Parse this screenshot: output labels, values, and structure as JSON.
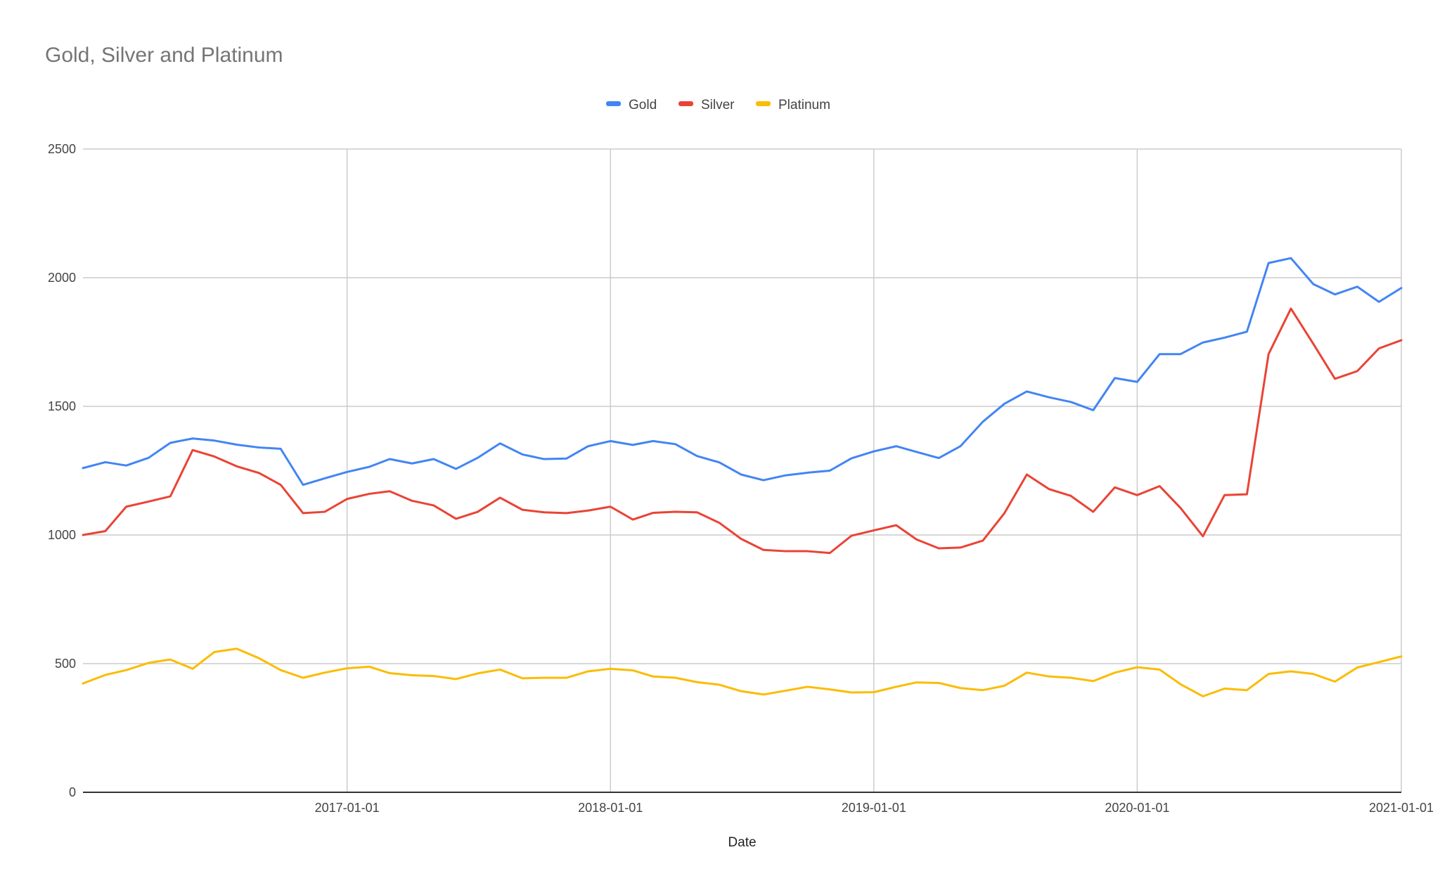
{
  "chart_data": {
    "type": "line",
    "title": "Gold, Silver and Platinum",
    "xlabel": "Date",
    "ylabel": "",
    "ylim": [
      0,
      2500
    ],
    "yticks": [
      0,
      500,
      1000,
      1500,
      2000,
      2500
    ],
    "xticks": [
      "2017-01-01",
      "2018-01-01",
      "2019-01-01",
      "2020-01-01",
      "2021-01-01"
    ],
    "xrange": [
      "2016-01-01",
      "2021-01-01"
    ],
    "grid": true,
    "legend_position": "top-center",
    "x": [
      "2016-01-01",
      "2016-02-01",
      "2016-03-01",
      "2016-04-01",
      "2016-05-01",
      "2016-06-01",
      "2016-07-01",
      "2016-08-01",
      "2016-09-01",
      "2016-10-01",
      "2016-11-01",
      "2016-12-01",
      "2017-01-01",
      "2017-02-01",
      "2017-03-01",
      "2017-04-01",
      "2017-05-01",
      "2017-06-01",
      "2017-07-01",
      "2017-08-01",
      "2017-09-01",
      "2017-10-01",
      "2017-11-01",
      "2017-12-01",
      "2018-01-01",
      "2018-02-01",
      "2018-03-01",
      "2018-04-01",
      "2018-05-01",
      "2018-06-01",
      "2018-07-01",
      "2018-08-01",
      "2018-09-01",
      "2018-10-01",
      "2018-11-01",
      "2018-12-01",
      "2019-01-01",
      "2019-02-01",
      "2019-03-01",
      "2019-04-01",
      "2019-05-01",
      "2019-06-01",
      "2019-07-01",
      "2019-08-01",
      "2019-09-01",
      "2019-10-01",
      "2019-11-01",
      "2019-12-01",
      "2020-01-01",
      "2020-02-01",
      "2020-03-01",
      "2020-04-01",
      "2020-05-01",
      "2020-06-01",
      "2020-07-01",
      "2020-08-01",
      "2020-09-01",
      "2020-10-01",
      "2020-11-01",
      "2020-12-01",
      "2021-01-01"
    ],
    "series": [
      {
        "name": "Gold",
        "color": "#4285F4",
        "values": [
          1260,
          1283,
          1270,
          1300,
          1358,
          1375,
          1367,
          1351,
          1340,
          1335,
          1195,
          1220,
          1245,
          1265,
          1295,
          1278,
          1295,
          1257,
          1300,
          1356,
          1313,
          1295,
          1297,
          1345,
          1365,
          1350,
          1365,
          1353,
          1307,
          1282,
          1235,
          1213,
          1232,
          1242,
          1250,
          1298,
          1325,
          1345,
          1323,
          1299,
          1345,
          1440,
          1510,
          1558,
          1535,
          1517,
          1485,
          1610,
          1595,
          1703,
          1703,
          1748,
          1767,
          1790,
          2057,
          2076,
          1975,
          1935,
          1965,
          1906,
          1960
        ]
      },
      {
        "name": "Silver",
        "color": "#EA4335",
        "values": [
          1000,
          1015,
          1110,
          1130,
          1150,
          1330,
          1305,
          1267,
          1241,
          1195,
          1085,
          1090,
          1140,
          1160,
          1170,
          1133,
          1115,
          1063,
          1090,
          1145,
          1098,
          1088,
          1085,
          1095,
          1110,
          1060,
          1086,
          1090,
          1088,
          1047,
          985,
          942,
          937,
          937,
          930,
          997,
          1018,
          1038,
          983,
          948,
          951,
          978,
          1085,
          1235,
          1178,
          1152,
          1090,
          1185,
          1155,
          1190,
          1105,
          995,
          1155,
          1158,
          1703,
          1880,
          1743,
          1607,
          1637,
          1725,
          1757
        ]
      },
      {
        "name": "Platinum",
        "color": "#FBBC04",
        "values": [
          423,
          456,
          475,
          503,
          516,
          480,
          545,
          558,
          521,
          475,
          445,
          465,
          482,
          488,
          463,
          455,
          452,
          440,
          462,
          477,
          443,
          445,
          445,
          470,
          480,
          474,
          450,
          445,
          428,
          418,
          393,
          380,
          395,
          410,
          400,
          388,
          389,
          410,
          427,
          425,
          405,
          397,
          414,
          465,
          450,
          445,
          432,
          465,
          486,
          477,
          420,
          373,
          403,
          397,
          460,
          470,
          460,
          430,
          485,
          506,
          528
        ]
      }
    ]
  }
}
